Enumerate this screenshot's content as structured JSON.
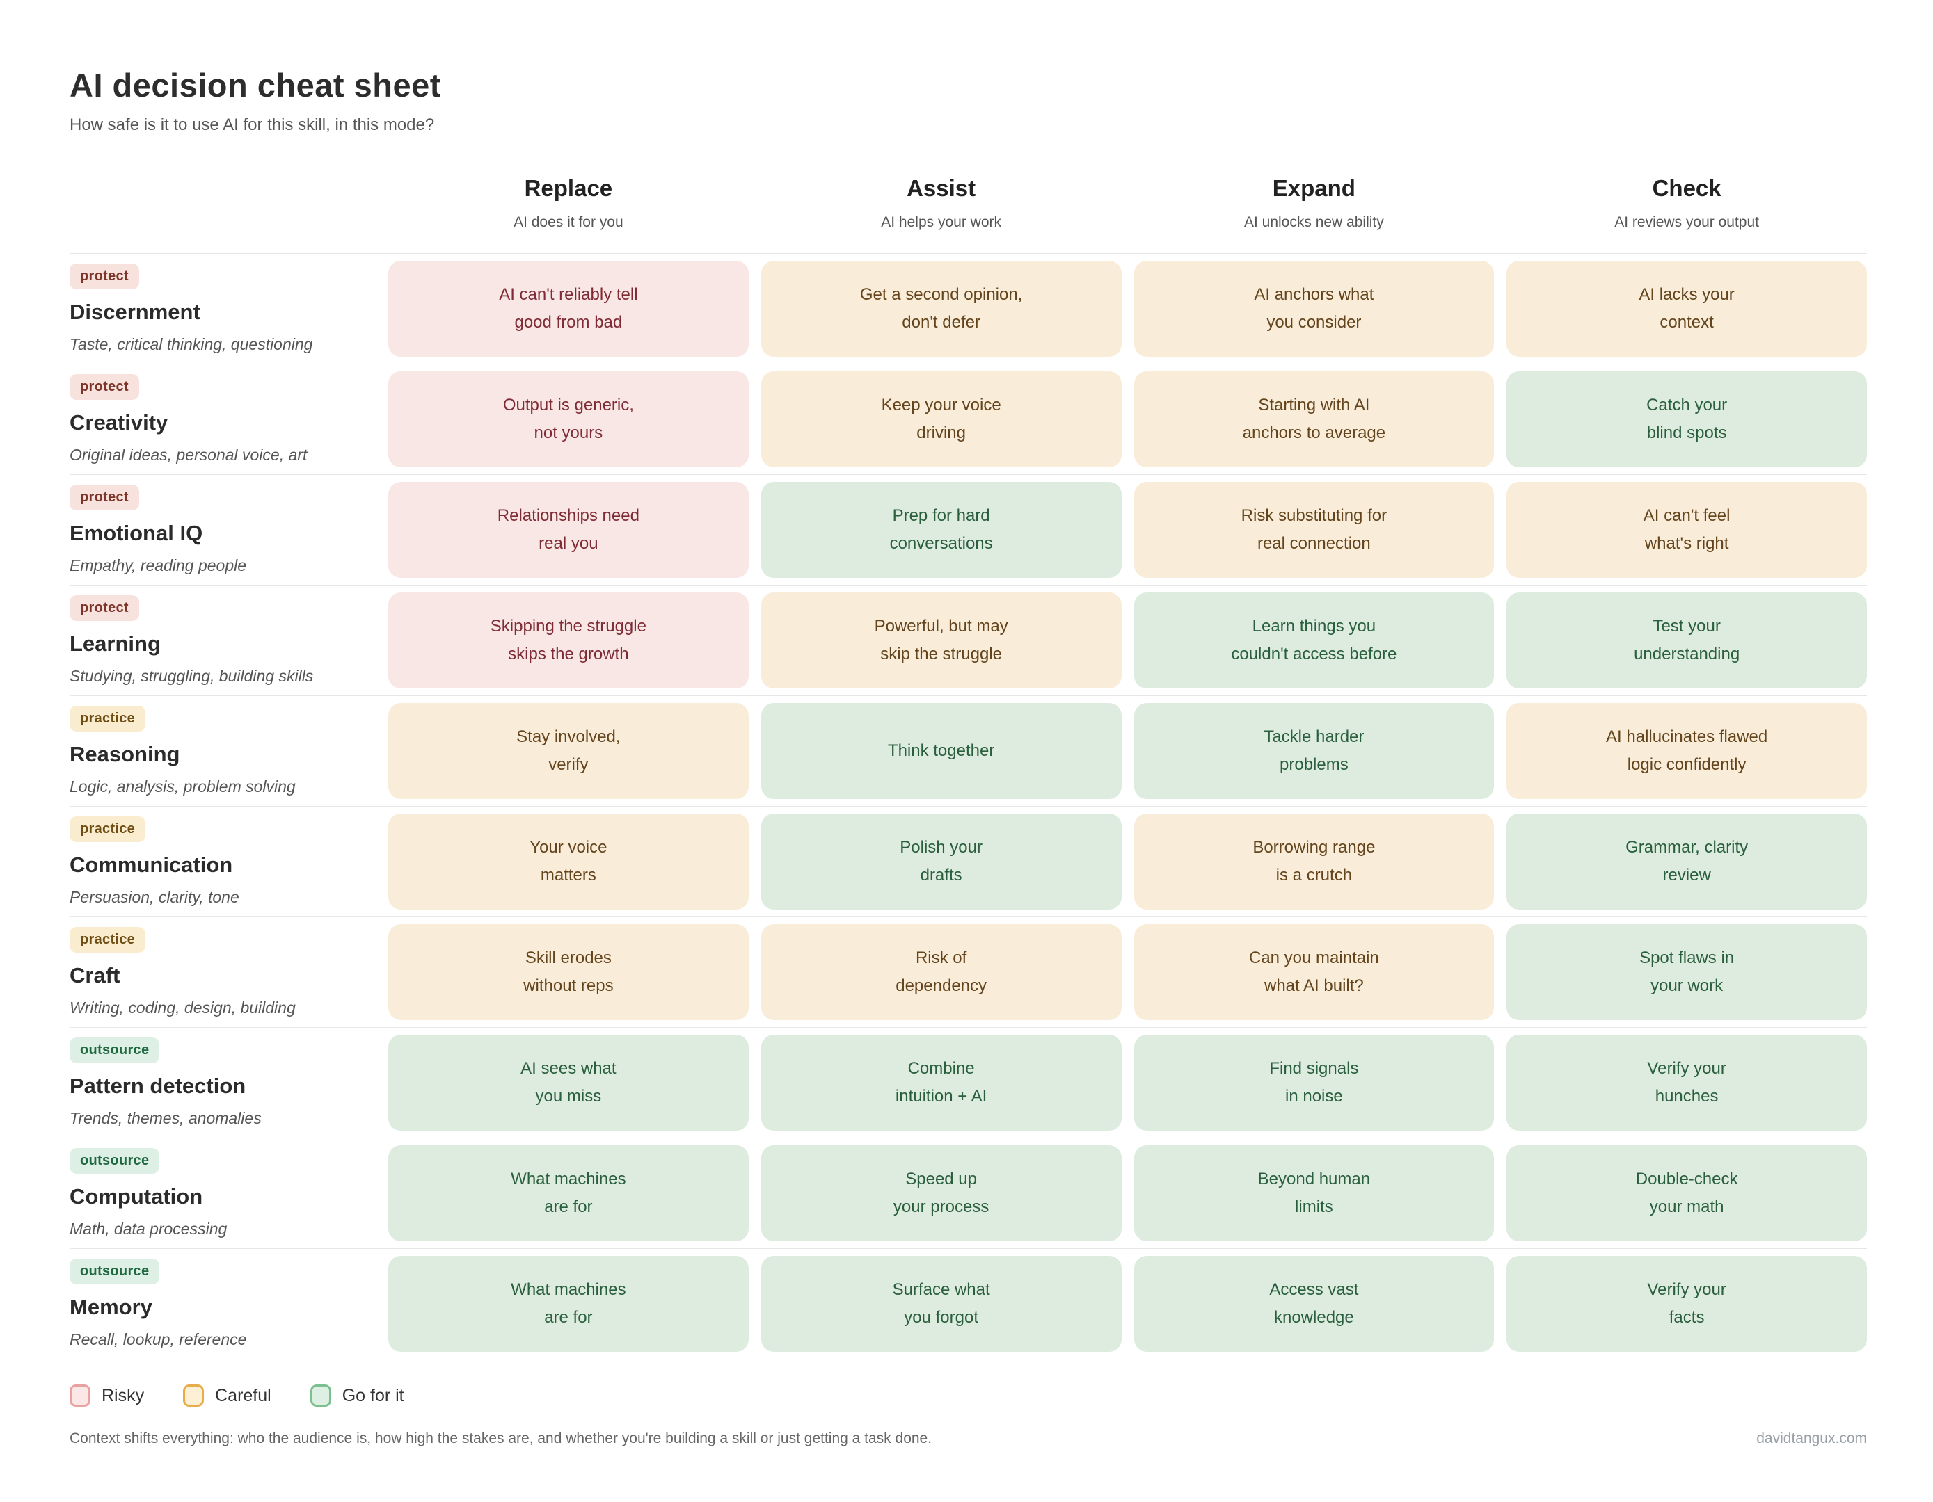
{
  "header": {
    "title": "AI decision cheat sheet",
    "subtitle": "How safe is it to use AI for this skill, in this mode?"
  },
  "columns": [
    {
      "label": "Replace",
      "sublabel": "AI does it for you"
    },
    {
      "label": "Assist",
      "sublabel": "AI helps your work"
    },
    {
      "label": "Expand",
      "sublabel": "AI unlocks new ability"
    },
    {
      "label": "Check",
      "sublabel": "AI reviews your output"
    }
  ],
  "rows": [
    {
      "badge": "protect",
      "name": "Discernment",
      "subtitle": "Taste, critical thinking, questioning",
      "cells": [
        {
          "tone": "risky",
          "text": "AI can't reliably tell\ngood from bad"
        },
        {
          "tone": "careful",
          "text": "Get a second opinion,\ndon't defer"
        },
        {
          "tone": "careful",
          "text": "AI anchors what\nyou consider"
        },
        {
          "tone": "careful",
          "text": "AI lacks your\ncontext"
        }
      ]
    },
    {
      "badge": "protect",
      "name": "Creativity",
      "subtitle": "Original ideas, personal voice, art",
      "cells": [
        {
          "tone": "risky",
          "text": "Output is generic,\nnot yours"
        },
        {
          "tone": "careful",
          "text": "Keep your voice\ndriving"
        },
        {
          "tone": "careful",
          "text": "Starting with AI\nanchors to average"
        },
        {
          "tone": "go",
          "text": "Catch your\nblind spots"
        }
      ]
    },
    {
      "badge": "protect",
      "name": "Emotional IQ",
      "subtitle": "Empathy, reading people",
      "cells": [
        {
          "tone": "risky",
          "text": "Relationships need\nreal you"
        },
        {
          "tone": "go",
          "text": "Prep for hard\nconversations"
        },
        {
          "tone": "careful",
          "text": "Risk substituting for\nreal connection"
        },
        {
          "tone": "careful",
          "text": "AI can't feel\nwhat's right"
        }
      ]
    },
    {
      "badge": "protect",
      "name": "Learning",
      "subtitle": "Studying, struggling, building skills",
      "cells": [
        {
          "tone": "risky",
          "text": "Skipping the struggle\nskips the growth"
        },
        {
          "tone": "careful",
          "text": "Powerful, but may\nskip the struggle"
        },
        {
          "tone": "go",
          "text": "Learn things you\ncouldn't access before"
        },
        {
          "tone": "go",
          "text": "Test your\nunderstanding"
        }
      ]
    },
    {
      "badge": "practice",
      "name": "Reasoning",
      "subtitle": "Logic, analysis, problem solving",
      "cells": [
        {
          "tone": "careful",
          "text": "Stay involved,\nverify"
        },
        {
          "tone": "go",
          "text": "Think together"
        },
        {
          "tone": "go",
          "text": "Tackle harder\nproblems"
        },
        {
          "tone": "careful",
          "text": "AI hallucinates flawed\nlogic confidently"
        }
      ]
    },
    {
      "badge": "practice",
      "name": "Communication",
      "subtitle": "Persuasion, clarity, tone",
      "cells": [
        {
          "tone": "careful",
          "text": "Your voice\nmatters"
        },
        {
          "tone": "go",
          "text": "Polish your\ndrafts"
        },
        {
          "tone": "careful",
          "text": "Borrowing range\nis a crutch"
        },
        {
          "tone": "go",
          "text": "Grammar, clarity\nreview"
        }
      ]
    },
    {
      "badge": "practice",
      "name": "Craft",
      "subtitle": "Writing, coding, design, building",
      "cells": [
        {
          "tone": "careful",
          "text": "Skill erodes\nwithout reps"
        },
        {
          "tone": "careful",
          "text": "Risk of\ndependency"
        },
        {
          "tone": "careful",
          "text": "Can you maintain\nwhat AI built?"
        },
        {
          "tone": "go",
          "text": "Spot flaws in\nyour work"
        }
      ]
    },
    {
      "badge": "outsource",
      "name": "Pattern detection",
      "subtitle": "Trends, themes, anomalies",
      "cells": [
        {
          "tone": "go",
          "text": "AI sees what\nyou miss"
        },
        {
          "tone": "go",
          "text": "Combine\nintuition + AI"
        },
        {
          "tone": "go",
          "text": "Find signals\nin noise"
        },
        {
          "tone": "go",
          "text": "Verify your\nhunches"
        }
      ]
    },
    {
      "badge": "outsource",
      "name": "Computation",
      "subtitle": "Math, data processing",
      "cells": [
        {
          "tone": "go",
          "text": "What machines\nare for"
        },
        {
          "tone": "go",
          "text": "Speed up\nyour process"
        },
        {
          "tone": "go",
          "text": "Beyond human\nlimits"
        },
        {
          "tone": "go",
          "text": "Double-check\nyour math"
        }
      ]
    },
    {
      "badge": "outsource",
      "name": "Memory",
      "subtitle": "Recall, lookup, reference",
      "cells": [
        {
          "tone": "go",
          "text": "What machines\nare for"
        },
        {
          "tone": "go",
          "text": "Surface what\nyou forgot"
        },
        {
          "tone": "go",
          "text": "Access vast\nknowledge"
        },
        {
          "tone": "go",
          "text": "Verify your\nfacts"
        }
      ]
    }
  ],
  "legend": {
    "items": [
      {
        "tone": "risky",
        "label": "Risky"
      },
      {
        "tone": "careful",
        "label": "Careful"
      },
      {
        "tone": "go",
        "label": "Go for it"
      }
    ]
  },
  "footer": {
    "note": "Context shifts everything: who the audience is, how high the stakes are, and whether you're building a skill or just getting a task done.",
    "credit": "davidtangux.com"
  },
  "colors": {
    "risky_bg": "#f9e7e5",
    "risky_text": "#7f2b35",
    "careful_bg": "#f9edd9",
    "careful_text": "#63441c",
    "go_bg": "#ddecdf",
    "go_text": "#2a5f3e"
  }
}
